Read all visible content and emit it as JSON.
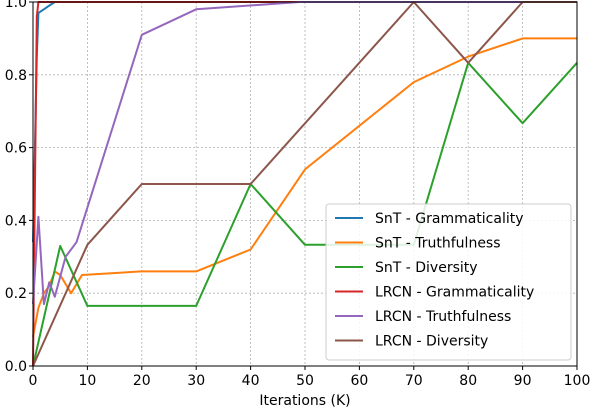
{
  "chart_data": {
    "type": "line",
    "xlabel": "Iterations (K)",
    "ylabel": "",
    "title": "",
    "xlim": [
      0,
      100
    ],
    "ylim": [
      0,
      1.0
    ],
    "xticks": [
      "0",
      "10",
      "20",
      "30",
      "40",
      "50",
      "60",
      "70",
      "80",
      "90",
      "100"
    ],
    "yticks": [
      "0.0",
      "0.2",
      "0.4",
      "0.6",
      "0.8",
      "1.0"
    ],
    "grid": true,
    "legend_position": "lower-right",
    "series": [
      {
        "name": "SnT - Grammaticality",
        "color": "#1f77b4",
        "points": [
          [
            0,
            0.34
          ],
          [
            0.7,
            0.85
          ],
          [
            1,
            0.97
          ],
          [
            2,
            0.98
          ],
          [
            3,
            0.99
          ],
          [
            4,
            1.0
          ],
          [
            100,
            1.0
          ]
        ]
      },
      {
        "name": "SnT - Truthfulness",
        "color": "#ff7f0e",
        "points": [
          [
            0,
            0.08
          ],
          [
            1,
            0.16
          ],
          [
            2,
            0.2
          ],
          [
            3,
            0.22
          ],
          [
            4,
            0.26
          ],
          [
            5,
            0.25
          ],
          [
            7,
            0.2
          ],
          [
            9,
            0.25
          ],
          [
            20,
            0.26
          ],
          [
            30,
            0.26
          ],
          [
            40,
            0.32
          ],
          [
            50,
            0.54
          ],
          [
            70,
            0.78
          ],
          [
            80,
            0.85
          ],
          [
            90,
            0.9
          ],
          [
            100,
            0.9
          ]
        ]
      },
      {
        "name": "SnT - Diversity",
        "color": "#2ca02c",
        "points": [
          [
            0,
            0.0
          ],
          [
            5,
            0.33
          ],
          [
            10,
            0.165
          ],
          [
            30,
            0.165
          ],
          [
            40,
            0.5
          ],
          [
            50,
            0.333
          ],
          [
            70,
            0.333
          ],
          [
            80,
            0.833
          ],
          [
            90,
            0.667
          ],
          [
            100,
            0.833
          ]
        ]
      },
      {
        "name": "LRCN - Grammaticality",
        "color": "#d62728",
        "points": [
          [
            0,
            0.0
          ],
          [
            0.7,
            0.96
          ],
          [
            1,
            1.0
          ],
          [
            100,
            1.0
          ]
        ]
      },
      {
        "name": "LRCN - Truthfulness",
        "color": "#9467bd",
        "points": [
          [
            0,
            0.17
          ],
          [
            1,
            0.41
          ],
          [
            2,
            0.17
          ],
          [
            3,
            0.23
          ],
          [
            4,
            0.19
          ],
          [
            6,
            0.3
          ],
          [
            8,
            0.34
          ],
          [
            20,
            0.91
          ],
          [
            30,
            0.98
          ],
          [
            49,
            1.0
          ],
          [
            100,
            1.0
          ]
        ]
      },
      {
        "name": "LRCN - Diversity",
        "color": "#8c564b",
        "points": [
          [
            0,
            0.0
          ],
          [
            10,
            0.333
          ],
          [
            20,
            0.5
          ],
          [
            40,
            0.5
          ],
          [
            70,
            1.0
          ],
          [
            80,
            0.833
          ],
          [
            90,
            1.0
          ],
          [
            100,
            1.0
          ]
        ]
      }
    ]
  }
}
